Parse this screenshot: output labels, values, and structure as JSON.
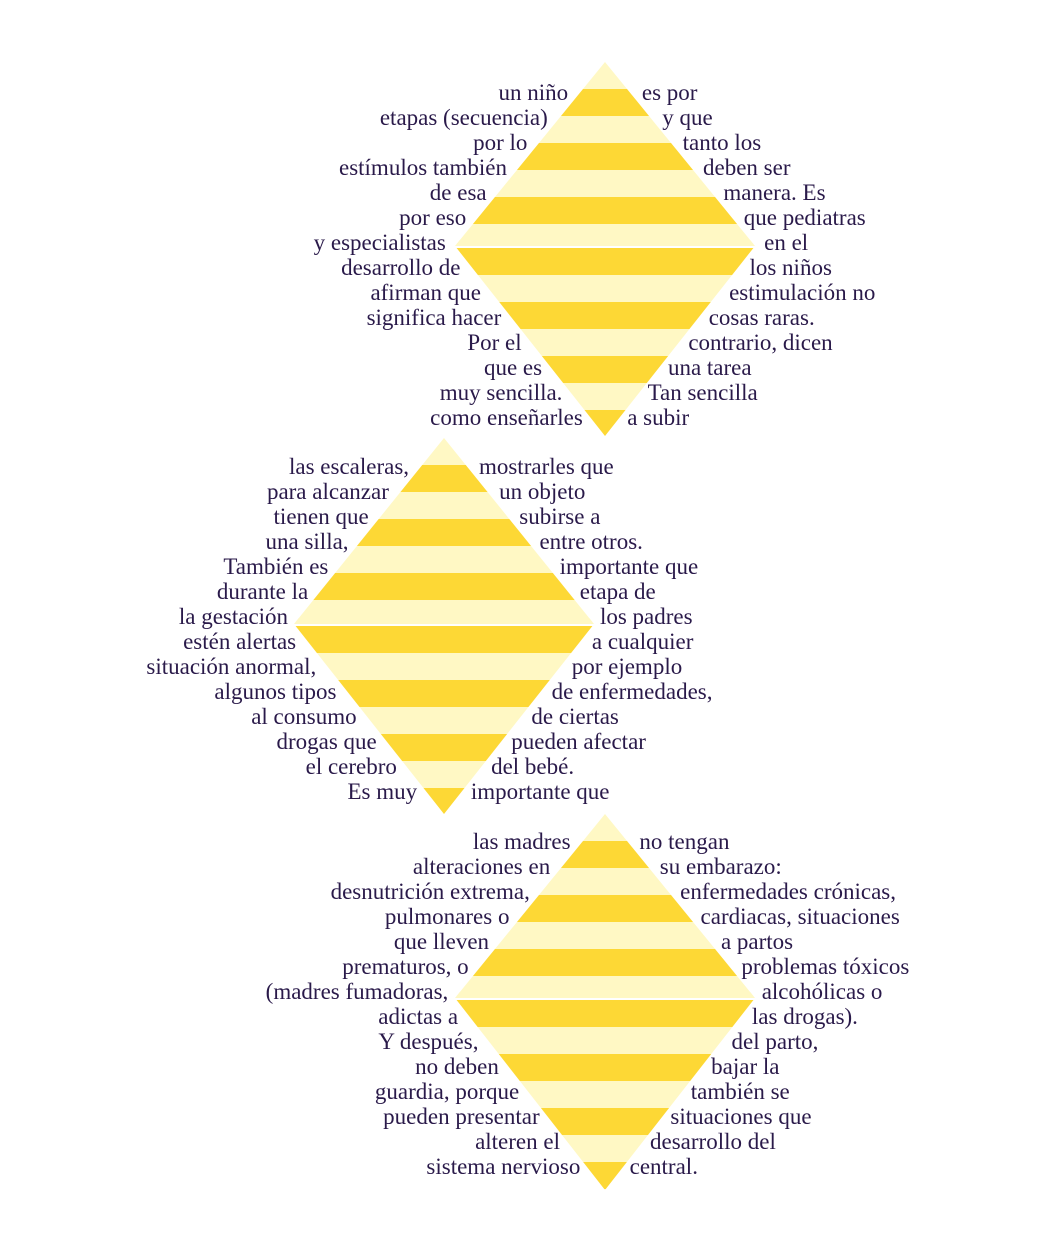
{
  "colors": {
    "stripe_dark": "#fdd835",
    "stripe_light": "#fff8c4",
    "text": "#2a1a4a",
    "background": "#ffffff"
  },
  "blocks": [
    {
      "left_lines": [
        "un niño",
        "etapas (secuencia)",
        "por lo",
        "estímulos también",
        "de esa",
        "por eso",
        "y especialistas",
        "desarrollo de",
        "afirman que",
        "significa hacer",
        "Por el",
        "que es",
        "muy sencilla.",
        "como enseñarles"
      ],
      "right_lines": [
        "es por",
        "y que",
        "tanto los",
        "deben ser",
        "manera. Es",
        "que pediatras",
        "en el",
        "los niños",
        "estimulación no",
        "cosas raras.",
        "contrario, dicen",
        "una tarea",
        "Tan sencilla",
        "a subir"
      ]
    },
    {
      "left_lines": [
        "las escaleras,",
        "para alcanzar",
        "tienen que",
        "una silla,",
        "También es",
        "durante la",
        "la gestación",
        "estén alertas",
        "situación anormal,",
        "algunos tipos",
        "al consumo",
        "drogas que",
        "el cerebro",
        "Es muy"
      ],
      "right_lines": [
        "mostrarles que",
        "un objeto",
        "subirse a",
        "entre otros.",
        "importante que",
        "etapa de",
        "los padres",
        "a cualquier",
        "por ejemplo",
        "de enfermedades,",
        "de ciertas",
        "pueden afectar",
        "del bebé.",
        "importante que"
      ]
    },
    {
      "left_lines": [
        "las madres",
        "alteraciones en",
        "desnutrición extrema,",
        "pulmonares o",
        "que lleven",
        "prematuros, o",
        "(madres fumadoras,",
        "adictas a",
        "Y después,",
        "no deben",
        "guardia, porque",
        "pueden presentar",
        "alteren el",
        "sistema nervioso"
      ],
      "right_lines": [
        "no tengan",
        "su embarazo:",
        "enfermedades crónicas,",
        "cardiacas, situaciones",
        "a partos",
        "problemas tóxicos",
        "alcohólicas o",
        "las drogas).",
        "del parto,",
        "bajar la",
        "también se",
        "situaciones que",
        "desarrollo del",
        "central."
      ]
    }
  ]
}
